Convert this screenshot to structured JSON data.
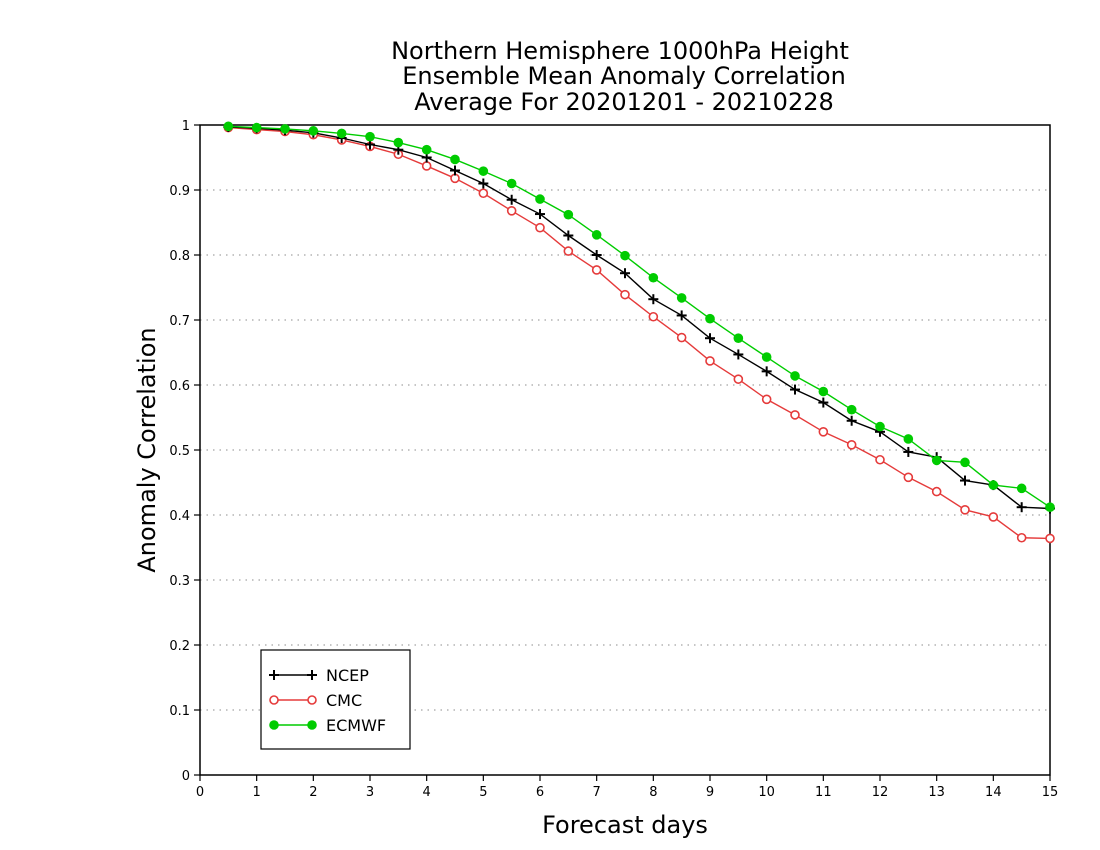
{
  "chart_data": {
    "type": "line",
    "title_lines": [
      "Northern Hemisphere 1000hPa Height",
      "Ensemble Mean Anomaly Correlation",
      "Average For 20201201 - 20210228"
    ],
    "xlabel": "Forecast days",
    "ylabel": "Anomaly Correlation",
    "xlim": [
      0,
      15
    ],
    "ylim": [
      0,
      1
    ],
    "x_ticks": [
      "0",
      "1",
      "2",
      "3",
      "4",
      "5",
      "6",
      "7",
      "8",
      "9",
      "10",
      "11",
      "12",
      "13",
      "14",
      "15"
    ],
    "y_ticks": [
      "0",
      "0.1",
      "0.2",
      "0.3",
      "0.4",
      "0.5",
      "0.6",
      "0.7",
      "0.8",
      "0.9",
      "1"
    ],
    "grid": "horizontal dotted",
    "legend_position": "bottom-left",
    "x": [
      0.5,
      1,
      1.5,
      2,
      2.5,
      3,
      3.5,
      4,
      4.5,
      5,
      5.5,
      6,
      6.5,
      7,
      7.5,
      8,
      8.5,
      9,
      9.5,
      10,
      10.5,
      11,
      11.5,
      12,
      12.5,
      13,
      13.5,
      14,
      14.5,
      15
    ],
    "series": [
      {
        "name": "NCEP",
        "color": "#000000",
        "marker": "plus",
        "values": [
          0.997,
          0.995,
          0.992,
          0.988,
          0.98,
          0.97,
          0.962,
          0.95,
          0.93,
          0.91,
          0.885,
          0.863,
          0.83,
          0.8,
          0.772,
          0.732,
          0.707,
          0.672,
          0.647,
          0.621,
          0.593,
          0.573,
          0.545,
          0.528,
          0.497,
          0.489,
          0.453,
          0.446,
          0.412,
          0.41
        ]
      },
      {
        "name": "CMC",
        "color": "#e53b3b",
        "marker": "open-circle",
        "values": [
          0.996,
          0.993,
          0.99,
          0.985,
          0.977,
          0.967,
          0.955,
          0.937,
          0.918,
          0.895,
          0.868,
          0.842,
          0.806,
          0.777,
          0.739,
          0.705,
          0.673,
          0.637,
          0.609,
          0.578,
          0.554,
          0.528,
          0.508,
          0.485,
          0.458,
          0.436,
          0.408,
          0.397,
          0.365,
          0.364
        ]
      },
      {
        "name": "ECMWF",
        "color": "#00cc00",
        "marker": "filled-circle",
        "values": [
          0.998,
          0.996,
          0.994,
          0.991,
          0.987,
          0.982,
          0.973,
          0.962,
          0.947,
          0.929,
          0.91,
          0.886,
          0.862,
          0.831,
          0.799,
          0.765,
          0.734,
          0.702,
          0.672,
          0.643,
          0.614,
          0.59,
          0.562,
          0.536,
          0.517,
          0.484,
          0.481,
          0.446,
          0.441,
          0.412
        ]
      }
    ]
  }
}
